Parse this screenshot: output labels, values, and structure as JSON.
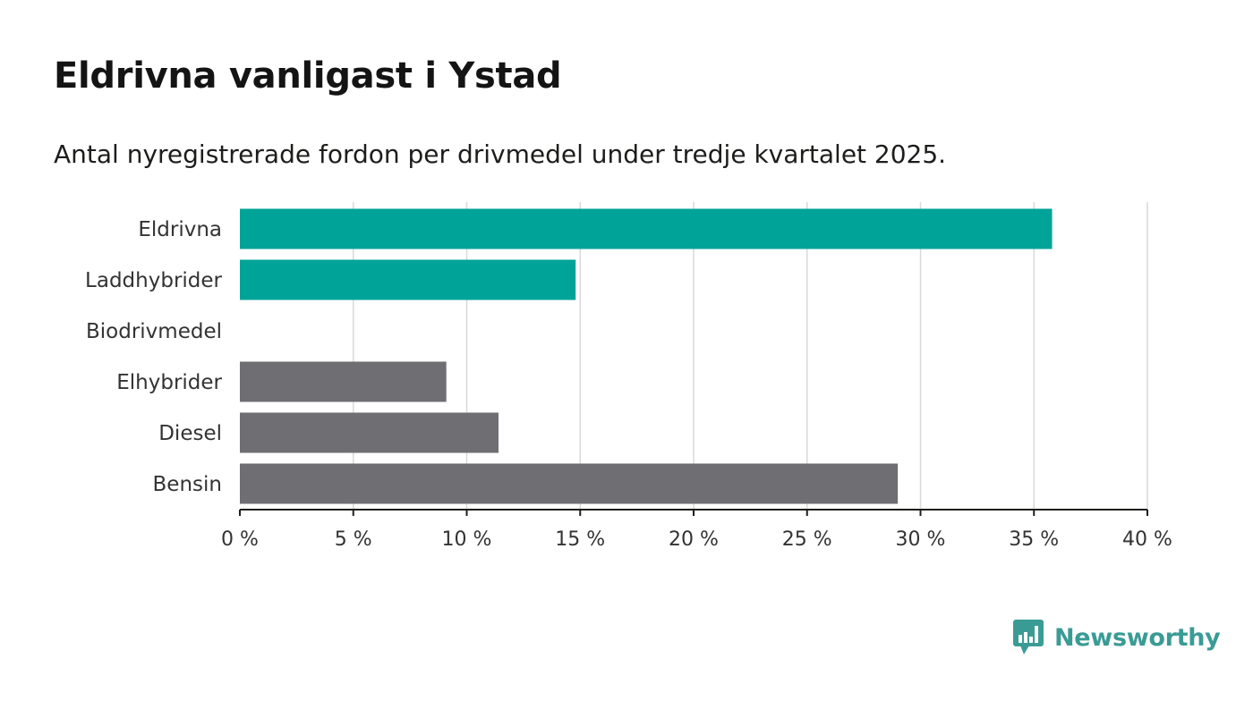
{
  "title": "Eldrivna vanligast i Ystad",
  "subtitle": "Antal nyregistrerade fordon per drivmedel under tredje kvartalet 2025.",
  "brand": {
    "name": "Newsworthy",
    "icon": "newsworthy-logo-icon",
    "color": "#3a9b95"
  },
  "colors": {
    "accent": "#00a398",
    "neutral": "#6e6e73",
    "grid": "#d9d9d9",
    "axis": "#1d1d1b"
  },
  "chart_data": {
    "type": "bar",
    "orientation": "horizontal",
    "categories": [
      "Eldrivna",
      "Laddhybrider",
      "Biodrivmedel",
      "Elhybrider",
      "Diesel",
      "Bensin"
    ],
    "values": [
      35.8,
      14.8,
      0,
      9.1,
      11.4,
      29.0
    ],
    "bar_colors": [
      "#00a398",
      "#00a398",
      "#00a398",
      "#6e6e73",
      "#6e6e73",
      "#6e6e73"
    ],
    "xlim": [
      0,
      40
    ],
    "xticks": [
      0,
      5,
      10,
      15,
      20,
      25,
      30,
      35,
      40
    ],
    "xtick_labels": [
      "0 %",
      "5 %",
      "10 %",
      "15 %",
      "20 %",
      "25 %",
      "30 %",
      "35 %",
      "40 %"
    ],
    "xlabel": "",
    "ylabel": "",
    "grid": "vertical",
    "legend": "none"
  }
}
